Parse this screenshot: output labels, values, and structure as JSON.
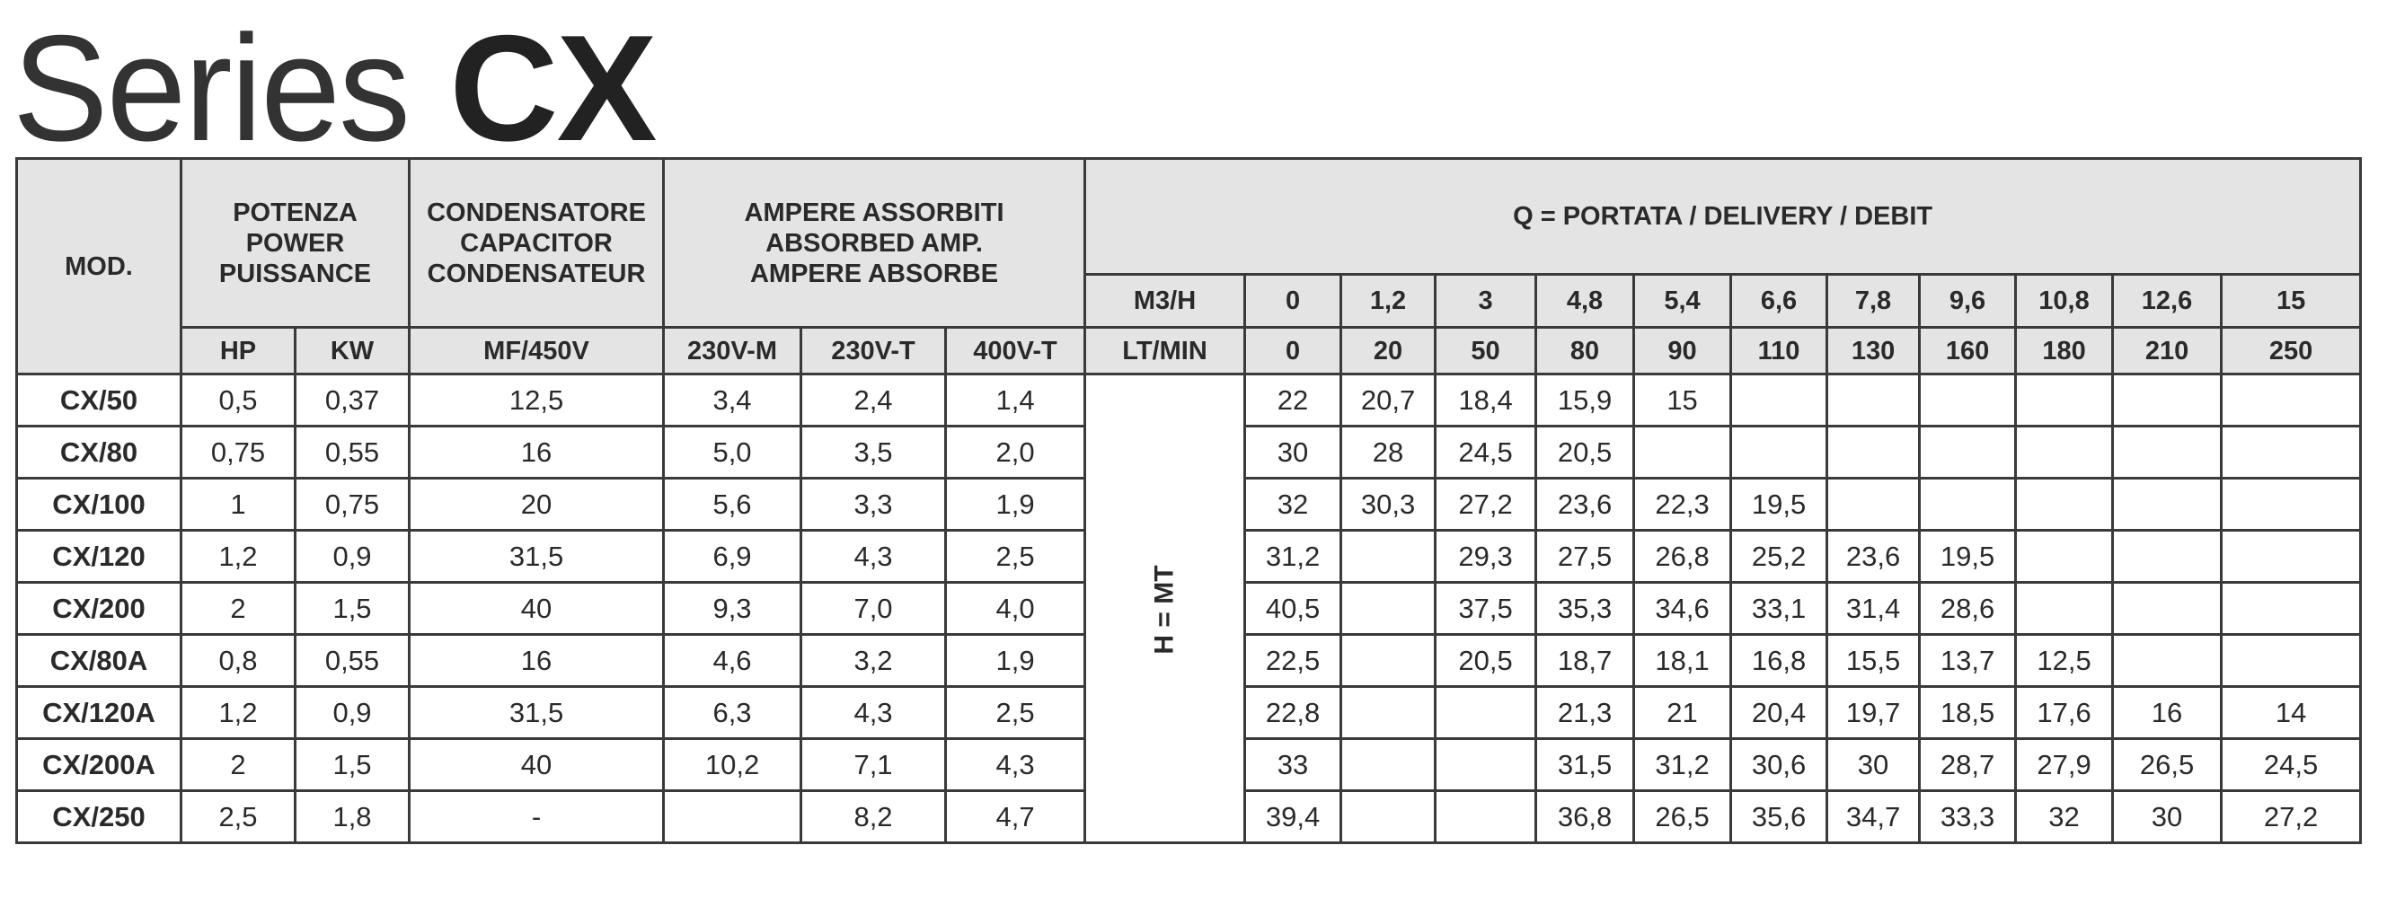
{
  "title": {
    "light": "Series",
    "bold": "CX"
  },
  "headers": {
    "mod": "MOD.",
    "power": [
      "POTENZA",
      "POWER",
      "PUISSANCE"
    ],
    "capacitor": [
      "CONDENSATORE",
      "CAPACITOR",
      "CONDENSATEUR"
    ],
    "amps": [
      "AMPERE ASSORBITI",
      "ABSORBED AMP.",
      "AMPERE ABSORBE"
    ],
    "delivery": "Q = PORTATA / DELIVERY / DEBIT",
    "m3h_label": "M3/H",
    "m3h": [
      "0",
      "1,2",
      "3",
      "4,8",
      "5,4",
      "6,6",
      "7,8",
      "9,6",
      "10,8",
      "12,6",
      "15"
    ],
    "ltmin_label": "LT/MIN",
    "ltmin": [
      "0",
      "20",
      "50",
      "80",
      "90",
      "110",
      "130",
      "160",
      "180",
      "210",
      "250"
    ],
    "hp": "HP",
    "kw": "KW",
    "mf": "MF/450V",
    "v230m": "230V-M",
    "v230t": "230V-T",
    "v400t": "400V-T",
    "head": "H = MT"
  },
  "rows": [
    {
      "mod": "CX/50",
      "hp": "0,5",
      "kw": "0,37",
      "mf": "12,5",
      "a230m": "3,4",
      "a230t": "2,4",
      "a400t": "1,4",
      "h": [
        "22",
        "20,7",
        "18,4",
        "15,9",
        "15",
        "",
        "",
        "",
        "",
        "",
        ""
      ]
    },
    {
      "mod": "CX/80",
      "hp": "0,75",
      "kw": "0,55",
      "mf": "16",
      "a230m": "5,0",
      "a230t": "3,5",
      "a400t": "2,0",
      "h": [
        "30",
        "28",
        "24,5",
        "20,5",
        "",
        "",
        "",
        "",
        "",
        "",
        ""
      ]
    },
    {
      "mod": "CX/100",
      "hp": "1",
      "kw": "0,75",
      "mf": "20",
      "a230m": "5,6",
      "a230t": "3,3",
      "a400t": "1,9",
      "h": [
        "32",
        "30,3",
        "27,2",
        "23,6",
        "22,3",
        "19,5",
        "",
        "",
        "",
        "",
        ""
      ]
    },
    {
      "mod": "CX/120",
      "hp": "1,2",
      "kw": "0,9",
      "mf": "31,5",
      "a230m": "6,9",
      "a230t": "4,3",
      "a400t": "2,5",
      "h": [
        "31,2",
        "",
        "29,3",
        "27,5",
        "26,8",
        "25,2",
        "23,6",
        "19,5",
        "",
        "",
        ""
      ]
    },
    {
      "mod": "CX/200",
      "hp": "2",
      "kw": "1,5",
      "mf": "40",
      "a230m": "9,3",
      "a230t": "7,0",
      "a400t": "4,0",
      "h": [
        "40,5",
        "",
        "37,5",
        "35,3",
        "34,6",
        "33,1",
        "31,4",
        "28,6",
        "",
        "",
        ""
      ]
    },
    {
      "mod": "CX/80A",
      "hp": "0,8",
      "kw": "0,55",
      "mf": "16",
      "a230m": "4,6",
      "a230t": "3,2",
      "a400t": "1,9",
      "h": [
        "22,5",
        "",
        "20,5",
        "18,7",
        "18,1",
        "16,8",
        "15,5",
        "13,7",
        "12,5",
        "",
        ""
      ]
    },
    {
      "mod": "CX/120A",
      "hp": "1,2",
      "kw": "0,9",
      "mf": "31,5",
      "a230m": "6,3",
      "a230t": "4,3",
      "a400t": "2,5",
      "h": [
        "22,8",
        "",
        "",
        "21,3",
        "21",
        "20,4",
        "19,7",
        "18,5",
        "17,6",
        "16",
        "14"
      ]
    },
    {
      "mod": "CX/200A",
      "hp": "2",
      "kw": "1,5",
      "mf": "40",
      "a230m": "10,2",
      "a230t": "7,1",
      "a400t": "4,3",
      "h": [
        "33",
        "",
        "",
        "31,5",
        "31,2",
        "30,6",
        "30",
        "28,7",
        "27,9",
        "26,5",
        "24,5"
      ]
    },
    {
      "mod": "CX/250",
      "hp": "2,5",
      "kw": "1,8",
      "mf": "-",
      "a230m": "",
      "a230t": "8,2",
      "a400t": "4,7",
      "h": [
        "39,4",
        "",
        "",
        "36,8",
        "26,5",
        "35,6",
        "34,7",
        "33,3",
        "32",
        "30",
        "27,2"
      ]
    }
  ]
}
